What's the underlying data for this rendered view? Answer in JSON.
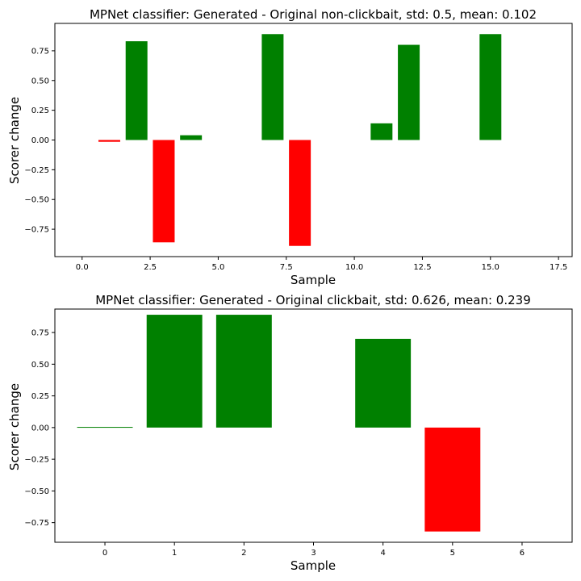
{
  "chart_data": [
    {
      "type": "bar",
      "title": "MPNet classifier: Generated - Original non-clickbait, std: 0.5, mean: 0.102",
      "xlabel": "Sample",
      "ylabel": "Scorer change",
      "x": [
        1,
        2,
        3,
        4,
        7,
        8,
        11,
        12,
        15
      ],
      "values": [
        -0.015,
        0.83,
        -0.86,
        0.04,
        0.89,
        -0.89,
        0.14,
        0.8,
        0.89
      ],
      "xlim": [
        -1.0,
        18.0
      ],
      "ylim": [
        -0.98,
        0.98
      ],
      "xticks": [
        0.0,
        2.5,
        5.0,
        7.5,
        10.0,
        12.5,
        15.0,
        17.5
      ],
      "xtick_labels": [
        "0.0",
        "2.5",
        "5.0",
        "7.5",
        "10.0",
        "12.5",
        "15.0",
        "17.5"
      ],
      "yticks": [
        0.75,
        0.5,
        0.25,
        0.0,
        -0.25,
        -0.5,
        -0.75
      ],
      "ytick_labels": [
        "0.75",
        "0.50",
        "0.25",
        "0.00",
        "−0.25",
        "−0.50",
        "−0.75"
      ],
      "positive_color": "#008000",
      "negative_color": "#ff0000",
      "grid": false
    },
    {
      "type": "bar",
      "title": "MPNet classifier: Generated - Original clickbait, std: 0.626, mean: 0.239",
      "xlabel": "Sample",
      "ylabel": "Scorer change",
      "x": [
        0,
        1,
        2,
        4,
        5
      ],
      "values": [
        0.005,
        0.89,
        0.89,
        0.7,
        -0.82
      ],
      "xlim": [
        -0.72,
        6.72
      ],
      "ylim": [
        -0.905,
        0.935
      ],
      "xticks": [
        0,
        1,
        2,
        3,
        4,
        5,
        6
      ],
      "xtick_labels": [
        "0",
        "1",
        "2",
        "3",
        "4",
        "5",
        "6"
      ],
      "yticks": [
        0.75,
        0.5,
        0.25,
        0.0,
        -0.25,
        -0.5,
        -0.75
      ],
      "ytick_labels": [
        "0.75",
        "0.50",
        "0.25",
        "0.00",
        "−0.25",
        "−0.50",
        "−0.75"
      ],
      "positive_color": "#008000",
      "negative_color": "#ff0000",
      "grid": false
    }
  ]
}
